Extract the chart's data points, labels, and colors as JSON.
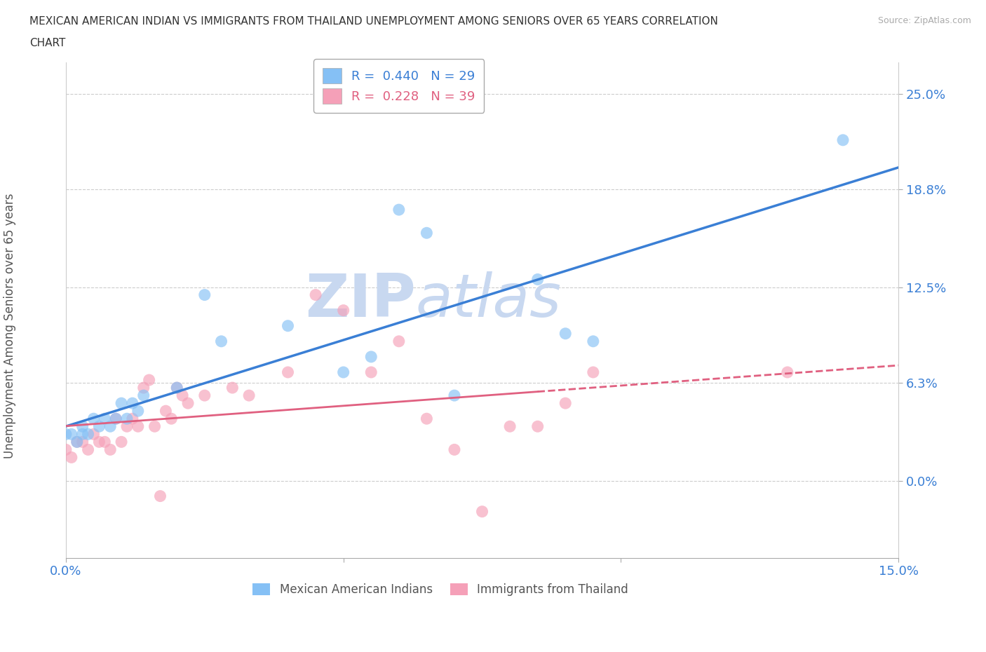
{
  "title_line1": "MEXICAN AMERICAN INDIAN VS IMMIGRANTS FROM THAILAND UNEMPLOYMENT AMONG SENIORS OVER 65 YEARS CORRELATION",
  "title_line2": "CHART",
  "source": "Source: ZipAtlas.com",
  "xlabel": "",
  "ylabel": "Unemployment Among Seniors over 65 years",
  "xlim": [
    0.0,
    0.15
  ],
  "ylim": [
    -0.05,
    0.27
  ],
  "yticks": [
    0.0,
    0.063,
    0.125,
    0.188,
    0.25
  ],
  "ytick_labels": [
    "0.0%",
    "6.3%",
    "12.5%",
    "18.8%",
    "25.0%"
  ],
  "xticks": [
    0.0,
    0.05,
    0.1,
    0.15
  ],
  "xtick_labels": [
    "0.0%",
    "",
    "",
    "15.0%"
  ],
  "grid_color": "#cccccc",
  "background_color": "#ffffff",
  "series1_color": "#85c0f5",
  "series2_color": "#f5a0b8",
  "series1_label": "Mexican American Indians",
  "series2_label": "Immigrants from Thailand",
  "R1": 0.44,
  "N1": 29,
  "R2": 0.228,
  "N2": 39,
  "series1_x": [
    0.0,
    0.001,
    0.002,
    0.003,
    0.003,
    0.004,
    0.005,
    0.006,
    0.007,
    0.008,
    0.009,
    0.01,
    0.011,
    0.012,
    0.013,
    0.014,
    0.02,
    0.025,
    0.028,
    0.04,
    0.05,
    0.055,
    0.06,
    0.065,
    0.07,
    0.085,
    0.09,
    0.095,
    0.14
  ],
  "series1_y": [
    0.03,
    0.03,
    0.025,
    0.03,
    0.035,
    0.03,
    0.04,
    0.035,
    0.04,
    0.035,
    0.04,
    0.05,
    0.04,
    0.05,
    0.045,
    0.055,
    0.06,
    0.12,
    0.09,
    0.1,
    0.07,
    0.08,
    0.175,
    0.16,
    0.055,
    0.13,
    0.095,
    0.09,
    0.22
  ],
  "series2_x": [
    0.0,
    0.001,
    0.002,
    0.003,
    0.004,
    0.005,
    0.006,
    0.007,
    0.008,
    0.009,
    0.01,
    0.011,
    0.012,
    0.013,
    0.014,
    0.015,
    0.016,
    0.017,
    0.018,
    0.019,
    0.02,
    0.021,
    0.022,
    0.025,
    0.03,
    0.033,
    0.04,
    0.045,
    0.05,
    0.055,
    0.06,
    0.065,
    0.07,
    0.075,
    0.08,
    0.085,
    0.09,
    0.095,
    0.13
  ],
  "series2_y": [
    0.02,
    0.015,
    0.025,
    0.025,
    0.02,
    0.03,
    0.025,
    0.025,
    0.02,
    0.04,
    0.025,
    0.035,
    0.04,
    0.035,
    0.06,
    0.065,
    0.035,
    -0.01,
    0.045,
    0.04,
    0.06,
    0.055,
    0.05,
    0.055,
    0.06,
    0.055,
    0.07,
    0.12,
    0.11,
    0.07,
    0.09,
    0.04,
    0.02,
    -0.02,
    0.035,
    0.035,
    0.05,
    0.07,
    0.07
  ],
  "watermark_line1": "ZIP",
  "watermark_line2": "atlas",
  "watermark_color": "#c8d8f0",
  "trendline1_color": "#3a7fd5",
  "trendline2_color": "#e06080",
  "trendline2_solid_end": 0.085,
  "legend_box_color1": "#85c0f5",
  "legend_box_color2": "#f5a0b8",
  "legend_text_color1": "#3a7fd5",
  "legend_text_color2": "#e06080",
  "tick_color": "#3a7fd5"
}
